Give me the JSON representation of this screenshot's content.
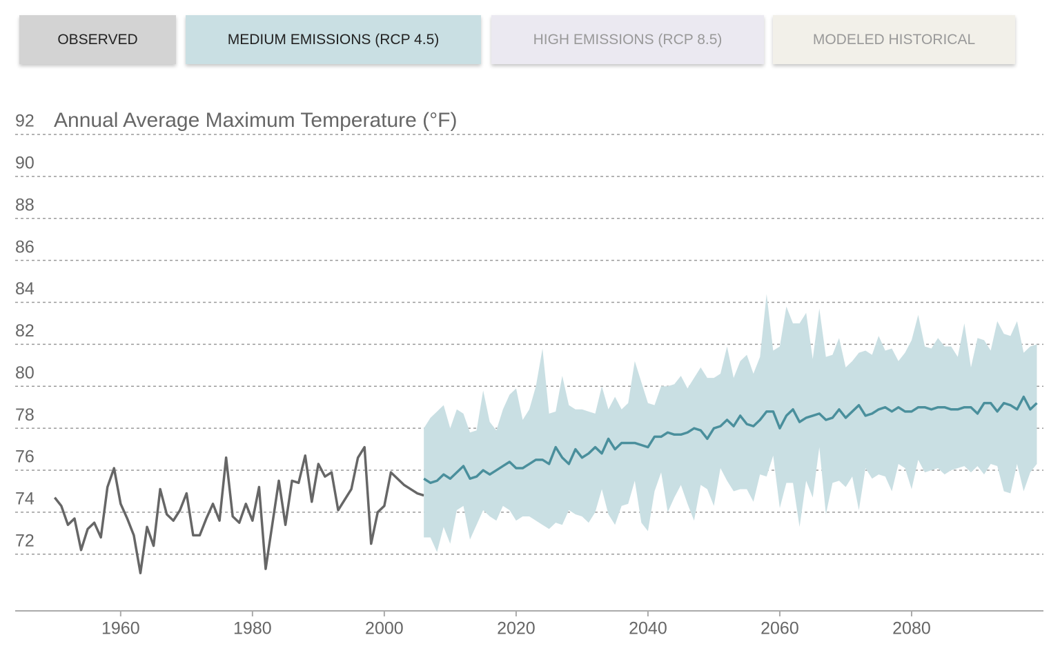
{
  "buttons": [
    {
      "label": "OBSERVED",
      "bg": "#d3d3d3",
      "fg": "#222222"
    },
    {
      "label": "MEDIUM EMISSIONS (RCP 4.5)",
      "bg": "#c9dfe3",
      "fg": "#222222"
    },
    {
      "label": "HIGH EMISSIONS (RCP 8.5)",
      "bg": "#ebe9f1",
      "fg": "#999999"
    },
    {
      "label": "MODELED HISTORICAL",
      "bg": "#f2f0e9",
      "fg": "#999999"
    }
  ],
  "chart_data": {
    "type": "line",
    "title": "Annual Average Maximum Temperature (°F)",
    "xlim": [
      1944,
      2100
    ],
    "ylim": [
      69.3,
      92
    ],
    "xticks": [
      1960,
      1980,
      2000,
      2020,
      2040,
      2060,
      2080
    ],
    "yticks": [
      72,
      74,
      76,
      78,
      80,
      82,
      84,
      86,
      88,
      90,
      92
    ],
    "grid": true,
    "series": [
      {
        "name": "OBSERVED",
        "color": "#666666",
        "x": [
          1950,
          1951,
          1952,
          1953,
          1954,
          1955,
          1956,
          1957,
          1958,
          1959,
          1960,
          1961,
          1962,
          1963,
          1964,
          1965,
          1966,
          1967,
          1968,
          1969,
          1970,
          1971,
          1972,
          1973,
          1974,
          1975,
          1976,
          1977,
          1978,
          1979,
          1980,
          1981,
          1982,
          1983,
          1984,
          1985,
          1986,
          1987,
          1988,
          1989,
          1990,
          1991,
          1992,
          1993,
          1994,
          1995,
          1996,
          1997,
          1998,
          1999,
          2000,
          2001,
          2002,
          2003,
          2004,
          2005,
          2006
        ],
        "values": [
          74.7,
          74.3,
          73.4,
          73.7,
          72.2,
          73.2,
          73.5,
          72.8,
          75.2,
          76.1,
          74.4,
          73.7,
          72.9,
          71.1,
          73.3,
          72.4,
          75.1,
          73.9,
          73.6,
          74.1,
          74.9,
          72.9,
          72.9,
          73.7,
          74.4,
          73.6,
          76.6,
          73.8,
          73.5,
          74.4,
          73.6,
          75.2,
          71.3,
          73.4,
          75.5,
          73.4,
          75.5,
          75.4,
          76.7,
          74.5,
          76.3,
          75.7,
          75.9,
          74.1,
          74.6,
          75.1,
          76.6,
          77.1,
          72.5,
          74.0,
          74.3,
          75.9,
          75.6,
          75.3,
          75.1,
          74.9,
          74.8
        ]
      },
      {
        "name": "MEDIUM EMISSIONS (RCP 4.5)",
        "color": "#4a8f9c",
        "band_color": "#c9dfe3",
        "x": [
          2006,
          2007,
          2008,
          2009,
          2010,
          2011,
          2012,
          2013,
          2014,
          2015,
          2016,
          2017,
          2018,
          2019,
          2020,
          2021,
          2022,
          2023,
          2024,
          2025,
          2026,
          2027,
          2028,
          2029,
          2030,
          2031,
          2032,
          2033,
          2034,
          2035,
          2036,
          2037,
          2038,
          2039,
          2040,
          2041,
          2042,
          2043,
          2044,
          2045,
          2046,
          2047,
          2048,
          2049,
          2050,
          2051,
          2052,
          2053,
          2054,
          2055,
          2056,
          2057,
          2058,
          2059,
          2060,
          2061,
          2062,
          2063,
          2064,
          2065,
          2066,
          2067,
          2068,
          2069,
          2070,
          2071,
          2072,
          2073,
          2074,
          2075,
          2076,
          2077,
          2078,
          2079,
          2080,
          2081,
          2082,
          2083,
          2084,
          2085,
          2086,
          2087,
          2088,
          2089,
          2090,
          2091,
          2092,
          2093,
          2094,
          2095,
          2096,
          2097,
          2098,
          2099
        ],
        "values": [
          75.6,
          75.4,
          75.5,
          75.8,
          75.6,
          75.9,
          76.2,
          75.6,
          75.7,
          76.0,
          75.8,
          76.0,
          76.2,
          76.4,
          76.1,
          76.1,
          76.3,
          76.5,
          76.5,
          76.3,
          77.1,
          76.6,
          76.3,
          77.0,
          76.6,
          76.8,
          77.1,
          76.8,
          77.5,
          77.0,
          77.3,
          77.3,
          77.3,
          77.2,
          77.1,
          77.6,
          77.6,
          77.8,
          77.7,
          77.7,
          77.8,
          78.0,
          77.9,
          77.5,
          78.0,
          78.1,
          78.4,
          78.1,
          78.6,
          78.2,
          78.1,
          78.4,
          78.8,
          78.8,
          78.0,
          78.6,
          78.9,
          78.3,
          78.5,
          78.6,
          78.7,
          78.4,
          78.5,
          78.9,
          78.5,
          78.8,
          79.1,
          78.6,
          78.7,
          78.9,
          79.0,
          78.8,
          79.0,
          78.8,
          78.8,
          79.0,
          79.0,
          78.9,
          79.0,
          79.0,
          78.9,
          78.9,
          79.0,
          79.0,
          78.7,
          79.2,
          79.2,
          78.8,
          79.2,
          79.1,
          78.9,
          79.5,
          78.9,
          79.2
        ],
        "high": [
          78.0,
          78.5,
          78.8,
          79.1,
          78.0,
          78.9,
          78.7,
          77.8,
          77.9,
          79.8,
          78.3,
          77.9,
          78.9,
          79.6,
          79.9,
          78.4,
          78.9,
          80.0,
          81.8,
          78.7,
          78.8,
          80.5,
          79.1,
          78.9,
          78.9,
          78.8,
          78.7,
          80.0,
          78.9,
          79.5,
          78.9,
          79.2,
          81.2,
          80.2,
          79.2,
          79.1,
          80.0,
          80.0,
          80.1,
          80.5,
          79.9,
          80.4,
          80.9,
          80.4,
          80.4,
          80.6,
          81.9,
          80.4,
          81.2,
          81.5,
          80.6,
          81.4,
          84.4,
          81.7,
          81.9,
          83.8,
          83.0,
          83.0,
          83.5,
          81.3,
          83.7,
          81.4,
          81.5,
          82.3,
          80.9,
          81.2,
          81.6,
          81.7,
          81.5,
          82.4,
          81.7,
          81.8,
          81.2,
          81.6,
          82.2,
          83.4,
          81.9,
          81.8,
          82.3,
          81.9,
          81.9,
          81.4,
          83.0,
          80.9,
          82.3,
          82.2,
          81.7,
          83.1,
          82.5,
          82.4,
          83.1,
          81.6,
          81.9,
          82.0
        ],
        "low": [
          72.8,
          72.8,
          72.1,
          73.3,
          72.5,
          74.1,
          74.3,
          72.7,
          73.4,
          74.1,
          73.8,
          73.6,
          74.3,
          74.1,
          73.6,
          73.8,
          73.8,
          73.6,
          73.4,
          73.2,
          73.5,
          73.4,
          74.1,
          73.9,
          73.8,
          73.5,
          74.0,
          75.1,
          73.9,
          73.4,
          74.3,
          74.4,
          75.5,
          73.5,
          73.1,
          75.0,
          75.9,
          74.0,
          74.7,
          75.3,
          74.4,
          73.6,
          75.3,
          75.1,
          74.3,
          76.1,
          75.5,
          75.0,
          75.1,
          75.1,
          74.5,
          75.8,
          75.7,
          76.7,
          74.2,
          75.4,
          75.4,
          73.3,
          75.5,
          74.7,
          77.1,
          73.9,
          75.4,
          75.5,
          75.2,
          75.7,
          74.1,
          76.1,
          75.6,
          75.8,
          75.7,
          75.0,
          76.3,
          76.1,
          75.1,
          76.5,
          75.9,
          76.0,
          76.1,
          75.8,
          76.0,
          76.1,
          76.2,
          75.9,
          76.2,
          75.8,
          76.3,
          76.2,
          75.0,
          74.9,
          76.3,
          75.0,
          75.9,
          76.3
        ]
      }
    ]
  }
}
